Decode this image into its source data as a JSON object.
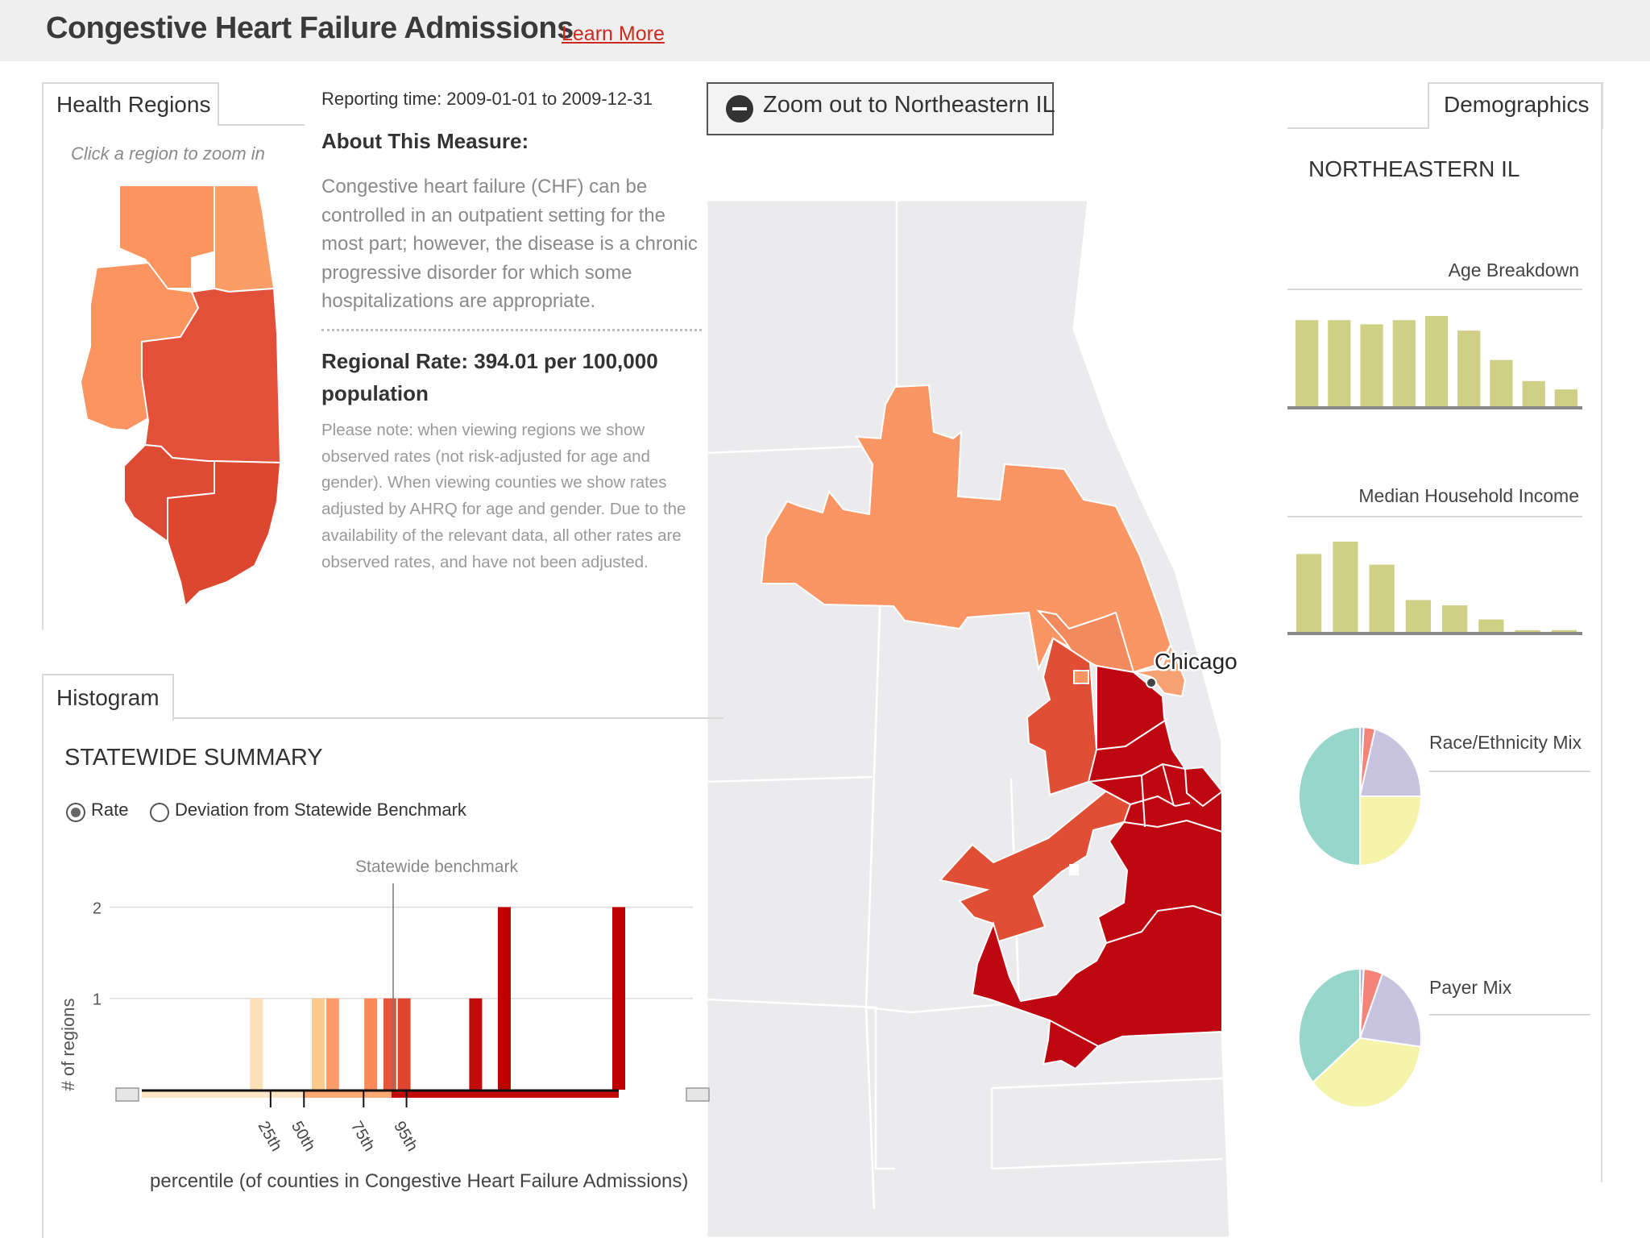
{
  "header": {
    "title": "Congestive Heart Failure Admissions",
    "learn_more": "Learn More"
  },
  "regions_panel": {
    "tab": "Health Regions",
    "hint": "Click a region to zoom  in"
  },
  "measure": {
    "reporting_time": "Reporting time: 2009-01-01 to 2009-12-31",
    "about_heading": "About This Measure:",
    "about_text": "Congestive heart failure (CHF) can be controlled in an outpatient setting for the most part; however, the disease is a chronic progressive disorder for which some hospitalizations are appropriate.",
    "regional_rate": "Regional Rate: 394.01 per 100,000 population",
    "note": "Please note: when viewing regions we show observed rates (not risk-adjusted for age and gender). When viewing counties we show rates adjusted by AHRQ for age and gender. Due to the availability of the relevant data, all other rates are observed rates, and have not been adjusted."
  },
  "zoom_button": {
    "label": "Zoom out to Northeastern IL",
    "icon": "minus-circle-icon"
  },
  "map": {
    "city_label": "Chicago"
  },
  "histogram_panel": {
    "tab": "Histogram",
    "summary_heading": "STATEWIDE SUMMARY",
    "radio_rate": "Rate",
    "radio_deviation": "Deviation from Statewide Benchmark",
    "selected_mode": "Rate",
    "benchmark_label": "Statewide benchmark",
    "x_label": "percentile (of counties in Congestive Heart Failure Admissions)"
  },
  "chart_data": [
    {
      "type": "bar",
      "title": "",
      "xlabel": "percentile (of counties in Congestive Heart Failure Admissions)",
      "ylabel": "# of regions",
      "ylim": [
        0,
        2
      ],
      "y_ticks": [
        "1",
        "2"
      ],
      "x_ticks": [
        "25th",
        "50th",
        "75th",
        "95th"
      ],
      "grid": true,
      "benchmark": "Statewide benchmark",
      "series": [
        {
          "values": [
            1,
            1,
            1,
            1,
            1,
            1,
            1,
            2,
            2
          ],
          "colors": [
            "#fde0b8",
            "#fdca8e",
            "#fc9c6a",
            "#fb8a58",
            "#e8533a",
            "#de4530",
            "#c20c0c",
            "#bd0000",
            "#bd0000"
          ]
        }
      ],
      "bar_positions_percentile": [
        24,
        37,
        40,
        48,
        52,
        55,
        70,
        76,
        100
      ]
    },
    {
      "type": "bar",
      "title": "Age Breakdown",
      "values": [
        8.2,
        8.2,
        7.8,
        8.2,
        8.6,
        7.2,
        4.4,
        2.4,
        1.6
      ]
    },
    {
      "type": "bar",
      "title": "Median Household Income",
      "values": [
        8.8,
        10.2,
        7.6,
        3.6,
        3.0,
        1.4,
        0.2,
        0.2
      ]
    },
    {
      "type": "pie",
      "title": "Race/Ethnicity Mix",
      "values": [
        1,
        3,
        21,
        25,
        50
      ],
      "colors": [
        "#a8b8e0",
        "#f4837a",
        "#c8c4e0",
        "#f5f4aa",
        "#97d6cb"
      ]
    },
    {
      "type": "pie",
      "title": "Payer Mix",
      "values": [
        1,
        5,
        21,
        37,
        36
      ],
      "colors": [
        "#a8b8e0",
        "#f4837a",
        "#c8c4e0",
        "#f5f4aa",
        "#97d6cb"
      ]
    }
  ],
  "demographics_panel": {
    "tab": "Demographics",
    "region_name": "NORTHEASTERN IL",
    "age_label": "Age Breakdown",
    "income_label": "Median Household Income",
    "race_label": "Race/Ethnicity Mix",
    "payer_label": "Payer Mix"
  },
  "colors": {
    "bar_olive": "#cfcf85",
    "axis_gray": "#888888",
    "rate_light": "#fc9c6a",
    "rate_mid": "#e8533a",
    "rate_dark": "#bd0000"
  }
}
